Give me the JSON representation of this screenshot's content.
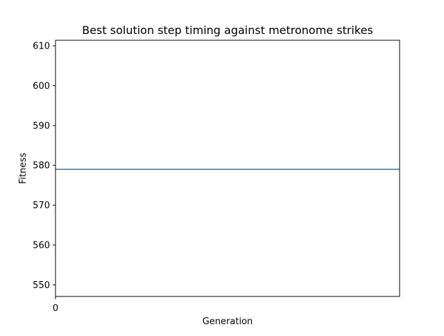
{
  "chart_data": {
    "type": "line",
    "title": "Best solution step timing against metronome strikes",
    "xlabel": "Generation",
    "ylabel": "Fitness",
    "x_ticks": [
      "0"
    ],
    "y_ticks": [
      550,
      560,
      570,
      580,
      590,
      600,
      610
    ],
    "xlim": [
      0,
      1
    ],
    "ylim": [
      547.1,
      611.4
    ],
    "grid": false,
    "series": [
      {
        "x": [
          0,
          1
        ],
        "y": [
          579,
          579
        ],
        "color": "#1f77b4"
      }
    ]
  }
}
